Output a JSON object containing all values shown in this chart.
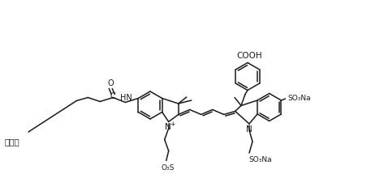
{
  "background_color": "#ffffff",
  "line_color": "#1a1a1a",
  "line_width": 1.1,
  "label_algae": "藻蓝素",
  "label_COOH": "COOH",
  "label_SO3Na_1": "SO₃Na",
  "label_SO3Na_2": "SO₃Na",
  "label_O3S": "O₃S",
  "font_size": 7.0
}
